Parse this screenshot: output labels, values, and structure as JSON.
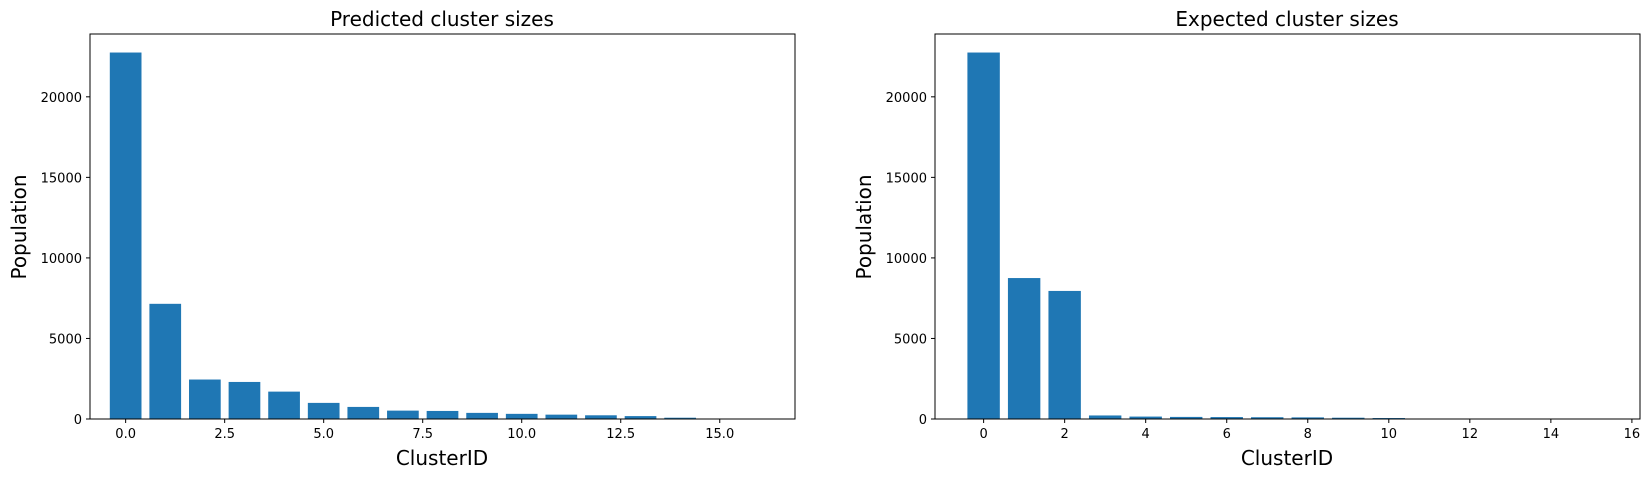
{
  "chart_data": [
    {
      "type": "bar",
      "title": "Predicted cluster sizes",
      "xlabel": "ClusterID",
      "ylabel": "Population",
      "x": [
        0,
        1,
        2,
        3,
        4,
        5,
        6,
        7,
        8,
        9,
        10,
        11,
        12,
        13,
        14,
        15,
        16
      ],
      "values": [
        22750,
        7150,
        2450,
        2300,
        1700,
        1000,
        750,
        520,
        500,
        380,
        320,
        270,
        230,
        180,
        80,
        20,
        10
      ],
      "xlim": [
        -0.9,
        16.9
      ],
      "ylim": [
        0,
        23900
      ],
      "xticks": [
        0.0,
        2.5,
        5.0,
        7.5,
        10.0,
        12.5,
        15.0
      ],
      "xtick_labels": [
        "0.0",
        "2.5",
        "5.0",
        "7.5",
        "10.0",
        "12.5",
        "15.0"
      ],
      "yticks": [
        0,
        5000,
        10000,
        15000,
        20000
      ],
      "ytick_labels": [
        "0",
        "5000",
        "10000",
        "15000",
        "20000"
      ],
      "color": "#1f77b4",
      "grid": false
    },
    {
      "type": "bar",
      "title": "Expected cluster sizes",
      "xlabel": "ClusterID",
      "ylabel": "Population",
      "x": [
        0,
        1,
        2,
        3,
        4,
        5,
        6,
        7,
        8,
        9,
        10,
        11,
        12,
        13,
        14,
        15
      ],
      "values": [
        22750,
        8750,
        7950,
        220,
        150,
        130,
        120,
        110,
        100,
        80,
        60,
        30,
        20,
        15,
        10,
        5
      ],
      "xlim": [
        -1.2,
        16.2
      ],
      "ylim": [
        0,
        23900
      ],
      "xticks": [
        0,
        2,
        4,
        6,
        8,
        10,
        12,
        14,
        16
      ],
      "xtick_labels": [
        "0",
        "2",
        "4",
        "6",
        "8",
        "10",
        "12",
        "14",
        "16"
      ],
      "yticks": [
        0,
        5000,
        10000,
        15000,
        20000
      ],
      "ytick_labels": [
        "0",
        "5000",
        "10000",
        "15000",
        "20000"
      ],
      "color": "#1f77b4",
      "grid": false
    }
  ]
}
